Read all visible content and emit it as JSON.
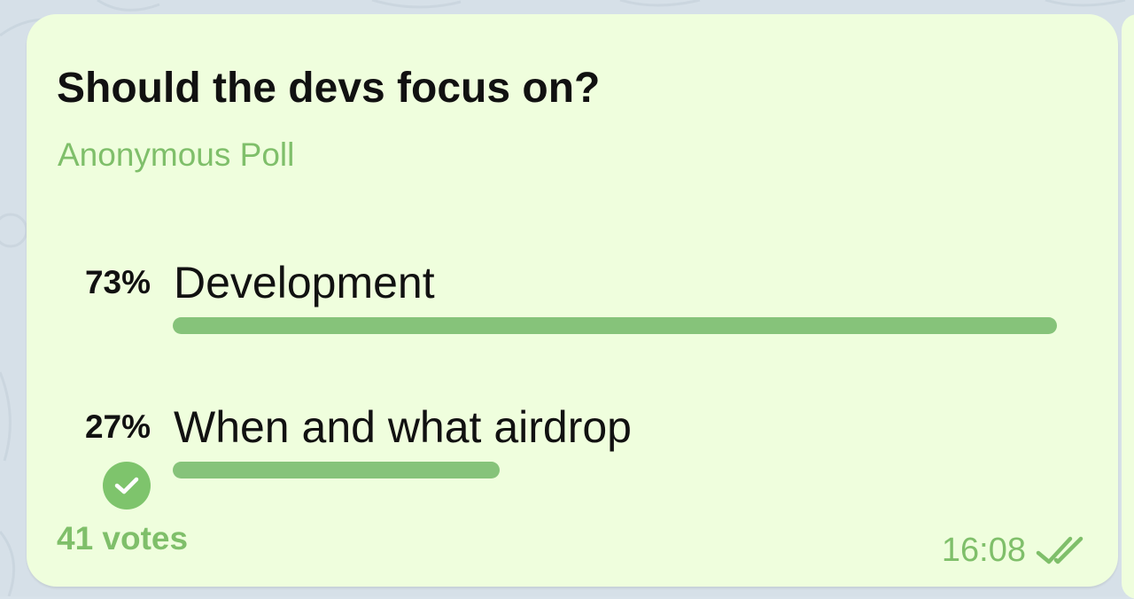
{
  "poll": {
    "question": "Should the devs focus on?",
    "type_label": "Anonymous Poll",
    "options": [
      {
        "percent_label": "73%",
        "label": "Development",
        "fraction": 1.0,
        "chosen": false
      },
      {
        "percent_label": "27%",
        "label": "When and what airdrop",
        "fraction": 0.37,
        "chosen": true
      }
    ],
    "votes_label": "41 votes"
  },
  "message": {
    "time": "16:08",
    "status_icon": "double-check-icon"
  },
  "colors": {
    "bubble": "#effedd",
    "accent": "#7fbf6a",
    "bar": "#86c37a",
    "text": "#111111",
    "background": "#d6e0e8"
  }
}
